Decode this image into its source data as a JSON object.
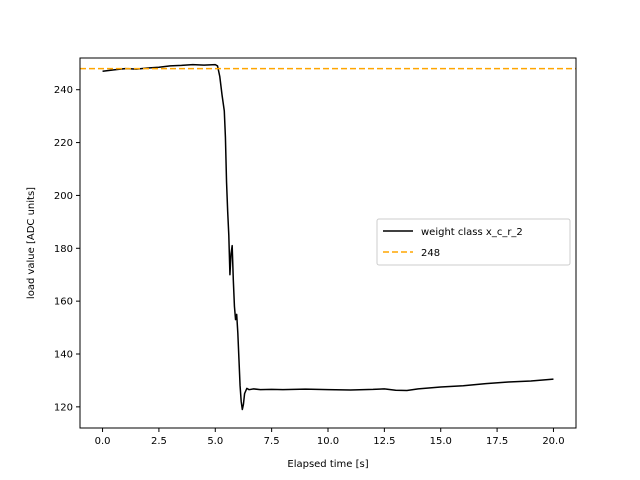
{
  "chart_data": {
    "type": "line",
    "xlabel": "Elapsed time [s]",
    "ylabel": "load value [ADC units]",
    "xlim": [
      -1.0,
      21.0
    ],
    "ylim": [
      112,
      252
    ],
    "xticks": [
      0.0,
      2.5,
      5.0,
      7.5,
      10.0,
      12.5,
      15.0,
      17.5,
      20.0
    ],
    "xtick_labels": [
      "0.0",
      "2.5",
      "5.0",
      "7.5",
      "10.0",
      "12.5",
      "15.0",
      "17.5",
      "20.0"
    ],
    "yticks": [
      120,
      140,
      160,
      180,
      200,
      220,
      240
    ],
    "ytick_labels": [
      "120",
      "140",
      "160",
      "180",
      "200",
      "220",
      "240"
    ],
    "grid": false,
    "legend_position": "center-right",
    "series": [
      {
        "name": "weight class x_c_r_2",
        "color": "#000000",
        "style": "solid",
        "x": [
          0.0,
          0.5,
          1.0,
          1.5,
          2.0,
          2.5,
          3.0,
          3.5,
          4.0,
          4.5,
          5.0,
          5.1,
          5.2,
          5.3,
          5.4,
          5.45,
          5.5,
          5.55,
          5.6,
          5.65,
          5.7,
          5.75,
          5.8,
          5.85,
          5.9,
          5.95,
          6.0,
          6.05,
          6.1,
          6.15,
          6.2,
          6.25,
          6.3,
          6.4,
          6.5,
          6.7,
          7.0,
          7.5,
          8.0,
          9.0,
          10.0,
          11.0,
          12.0,
          12.5,
          13.0,
          13.5,
          14.0,
          15.0,
          16.0,
          17.0,
          18.0,
          19.0,
          20.0
        ],
        "y": [
          247,
          247.5,
          248,
          247.8,
          248.2,
          248.5,
          249,
          249.2,
          249.5,
          249.3,
          249.5,
          249,
          245,
          238,
          232,
          222,
          205,
          194,
          185,
          170,
          178,
          181,
          168,
          158,
          153,
          155,
          148,
          138,
          128,
          122,
          119,
          121,
          125,
          127,
          126.5,
          126.8,
          126.5,
          126.6,
          126.5,
          126.7,
          126.5,
          126.4,
          126.6,
          126.8,
          126.3,
          126.2,
          126.8,
          127.5,
          128,
          128.8,
          129.4,
          129.8,
          130.5
        ]
      },
      {
        "name": "248",
        "color": "#ffa500",
        "style": "dashed",
        "x": [
          -1.0,
          21.0
        ],
        "y": [
          248,
          248
        ]
      }
    ]
  }
}
